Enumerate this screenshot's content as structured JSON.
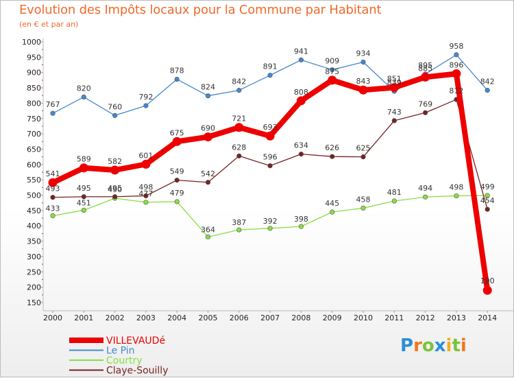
{
  "header": {
    "title": "Evolution des Impôts locaux pour la Commune par Habitant",
    "subtitle": "(en € et par an)"
  },
  "chart_data": {
    "type": "line",
    "title": "Evolution des Impôts locaux pour la Commune par Habitant",
    "ylabel": "(en € et par an)",
    "xlabel": "",
    "ylim": [
      150,
      1000
    ],
    "yticks": [
      150,
      200,
      250,
      300,
      350,
      400,
      450,
      500,
      550,
      600,
      650,
      700,
      750,
      800,
      850,
      900,
      950,
      1000
    ],
    "grid": false,
    "legend_position": "bottom-left",
    "categories": [
      "2000",
      "2001",
      "2002",
      "2003",
      "2004",
      "2005",
      "2006",
      "2007",
      "2008",
      "2009",
      "2010",
      "2011",
      "2012",
      "2013",
      "2014"
    ],
    "series": [
      {
        "name": "Courtry",
        "color": "#88dd44",
        "values": [
          433,
          451,
          490,
          477,
          479,
          364,
          387,
          392,
          398,
          445,
          458,
          481,
          494,
          498,
          499
        ]
      },
      {
        "name": "Claye-Souilly",
        "color": "#772222",
        "values": [
          493,
          495,
          495,
          498,
          549,
          542,
          628,
          596,
          634,
          626,
          625,
          743,
          769,
          812,
          454
        ]
      },
      {
        "name": "Le Pin",
        "color": "#4488cc",
        "values": [
          767,
          820,
          760,
          792,
          878,
          824,
          842,
          891,
          941,
          909,
          934,
          839,
          895,
          958,
          842
        ]
      },
      {
        "name": "VILLEVAUDé",
        "color": "#ee0000",
        "values": [
          541,
          589,
          582,
          601,
          675,
          690,
          721,
          693,
          808,
          875,
          843,
          851,
          885,
          896,
          190
        ]
      }
    ],
    "legend": [
      "VILLEVAUDé",
      "Le Pin",
      "Courtry",
      "Claye-Souilly"
    ]
  },
  "logo": {
    "letters": [
      "P",
      "r",
      "o",
      "x",
      "i",
      "t",
      "i"
    ],
    "colors": [
      "#2a8fd8",
      "#f07820",
      "#7cc23a",
      "#2a8fd8",
      "#f0b020",
      "#7cc23a",
      "#f07820"
    ]
  }
}
